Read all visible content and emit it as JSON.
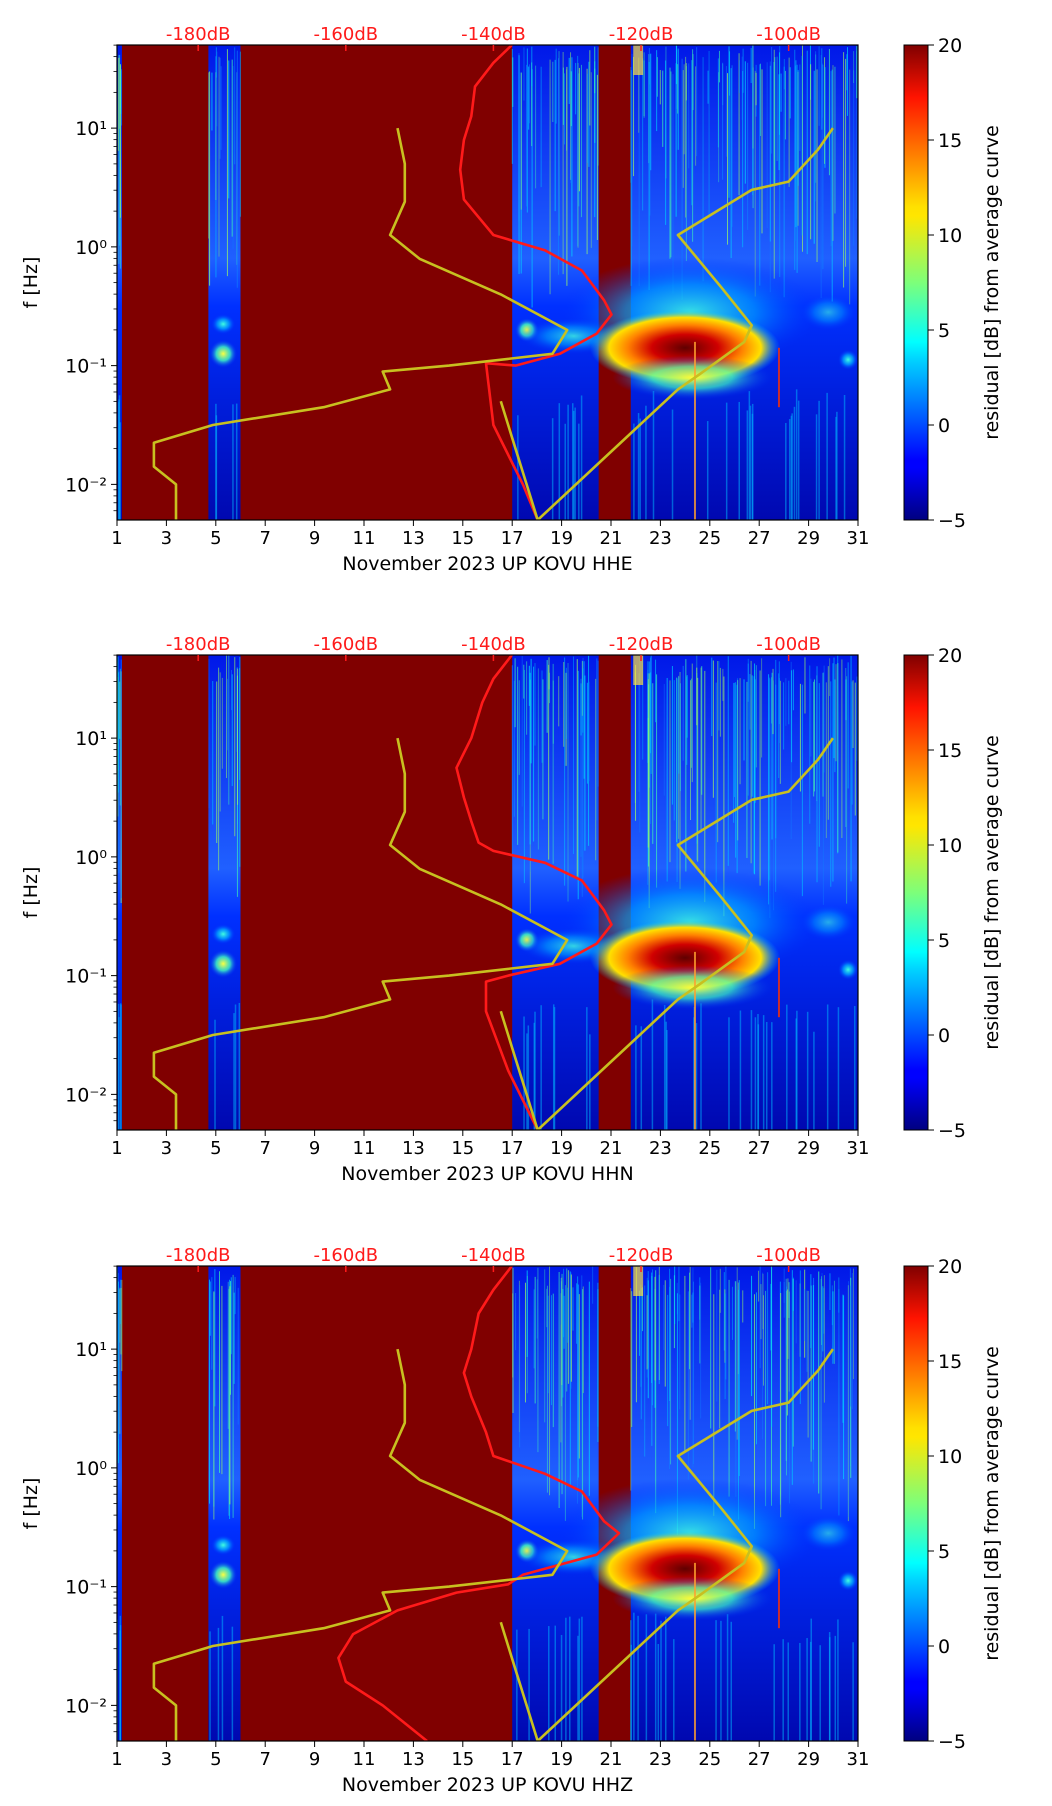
{
  "chart_data": [
    {
      "type": "heatmap",
      "title": "",
      "xlabel": "November 2023 UP KOVU  HHE",
      "ylabel": "f [Hz]",
      "x_ticks": [
        "1",
        "3",
        "5",
        "7",
        "9",
        "11",
        "13",
        "15",
        "17",
        "19",
        "21",
        "23",
        "25",
        "27",
        "29",
        "31"
      ],
      "y_ticks": [
        "10⁻²",
        "10⁻¹",
        "10⁰",
        "10¹"
      ],
      "top_ticks": [
        "-180dB",
        "-160dB",
        "-140dB",
        "-120dB",
        "-100dB"
      ],
      "colorbar": {
        "label": "residual [dB] from average curve",
        "ticks": [
          "20",
          "15",
          "10",
          "5",
          "0",
          "−5"
        ],
        "range": [
          -5,
          20
        ]
      },
      "xlim": [
        1,
        31
      ],
      "ylim_log10": [
        -2.3,
        1.7
      ],
      "series": [
        {
          "values": [
            [
              -137.5,
              1.7
            ],
            [
              -140,
              1.55
            ],
            [
              -142.5,
              1.35
            ],
            [
              -143,
              1.1
            ],
            [
              -144,
              0.9
            ],
            [
              -144.5,
              0.65
            ],
            [
              -144,
              0.4
            ],
            [
              -142,
              0.25
            ],
            [
              -140,
              0.1
            ],
            [
              -133,
              -0.03
            ],
            [
              -128,
              -0.2
            ],
            [
              -125,
              -0.45
            ],
            [
              -124,
              -0.57
            ],
            [
              -126,
              -0.73
            ],
            [
              -131,
              -0.9
            ],
            [
              -137,
              -1.0
            ],
            [
              -141,
              -0.98
            ],
            [
              -140,
              -1.5
            ],
            [
              -136,
              -2.0
            ],
            [
              -134,
              -2.3
            ]
          ]
        },
        {
          "values": [
            [
              -153,
              1.0
            ],
            [
              -152,
              0.7
            ],
            [
              -152,
              0.38
            ],
            [
              -154,
              0.1
            ],
            [
              -150,
              -0.1
            ],
            [
              -139,
              -0.4
            ],
            [
              -130,
              -0.7
            ],
            [
              -132,
              -0.9
            ],
            [
              -146,
              -1.0
            ],
            [
              -155,
              -1.05
            ],
            [
              -154,
              -1.2
            ],
            [
              -163,
              -1.35
            ],
            [
              -178,
              -1.5
            ],
            [
              -186,
              -1.65
            ],
            [
              -186,
              -1.85
            ],
            [
              -183,
              -2.0
            ],
            [
              -183,
              -2.3
            ]
          ]
        },
        {
          "values": [
            [
              -139,
              -1.3
            ],
            [
              -134,
              -2.3
            ],
            [
              -115,
              -1.2
            ],
            [
              -112,
              -1.07
            ],
            [
              -106,
              -0.8
            ],
            [
              -105,
              -0.66
            ],
            [
              -109,
              -0.35
            ],
            [
              -115,
              0.1
            ],
            [
              -105,
              0.48
            ],
            [
              -100,
              0.55
            ],
            [
              -96,
              0.82
            ],
            [
              -94,
              1.0
            ]
          ]
        }
      ],
      "colors": {
        "line_main": "#ff1a1a",
        "line_model": "#c8c020",
        "background": "#800000"
      }
    },
    {
      "type": "heatmap",
      "title": "",
      "xlabel": "November 2023 UP KOVU  HHN",
      "ylabel": "f [Hz]",
      "x_ticks": [
        "1",
        "3",
        "5",
        "7",
        "9",
        "11",
        "13",
        "15",
        "17",
        "19",
        "21",
        "23",
        "25",
        "27",
        "29",
        "31"
      ],
      "y_ticks": [
        "10⁻²",
        "10⁻¹",
        "10⁰",
        "10¹"
      ],
      "top_ticks": [
        "-180dB",
        "-160dB",
        "-140dB",
        "-120dB",
        "-100dB"
      ],
      "colorbar": {
        "label": "residual [dB] from average curve",
        "ticks": [
          "20",
          "15",
          "10",
          "5",
          "0",
          "−5"
        ],
        "range": [
          -5,
          20
        ]
      },
      "xlim": [
        1,
        31
      ],
      "ylim_log10": [
        -2.3,
        1.7
      ],
      "series": [
        {
          "values": [
            [
              -137.5,
              1.7
            ],
            [
              -140,
              1.5
            ],
            [
              -141.5,
              1.3
            ],
            [
              -143,
              1.0
            ],
            [
              -145,
              0.75
            ],
            [
              -144,
              0.5
            ],
            [
              -143,
              0.3
            ],
            [
              -142,
              0.12
            ],
            [
              -140,
              0.05
            ],
            [
              -133,
              -0.05
            ],
            [
              -128,
              -0.2
            ],
            [
              -125,
              -0.45
            ],
            [
              -124,
              -0.57
            ],
            [
              -126,
              -0.73
            ],
            [
              -131,
              -0.9
            ],
            [
              -138,
              -1.0
            ],
            [
              -141,
              -1.05
            ],
            [
              -141,
              -1.3
            ],
            [
              -138,
              -1.8
            ],
            [
              -134,
              -2.3
            ]
          ]
        },
        {
          "values": [
            [
              -153,
              1.0
            ],
            [
              -152,
              0.7
            ],
            [
              -152,
              0.38
            ],
            [
              -154,
              0.1
            ],
            [
              -150,
              -0.1
            ],
            [
              -139,
              -0.4
            ],
            [
              -130,
              -0.7
            ],
            [
              -132,
              -0.9
            ],
            [
              -146,
              -1.0
            ],
            [
              -155,
              -1.05
            ],
            [
              -154,
              -1.2
            ],
            [
              -163,
              -1.35
            ],
            [
              -178,
              -1.5
            ],
            [
              -186,
              -1.65
            ],
            [
              -186,
              -1.85
            ],
            [
              -183,
              -2.0
            ],
            [
              -183,
              -2.3
            ]
          ]
        },
        {
          "values": [
            [
              -139,
              -1.3
            ],
            [
              -134,
              -2.3
            ],
            [
              -115,
              -1.2
            ],
            [
              -112,
              -1.07
            ],
            [
              -106,
              -0.8
            ],
            [
              -105,
              -0.66
            ],
            [
              -109,
              -0.35
            ],
            [
              -115,
              0.1
            ],
            [
              -105,
              0.48
            ],
            [
              -100,
              0.55
            ],
            [
              -96,
              0.82
            ],
            [
              -94,
              1.0
            ]
          ]
        }
      ],
      "colors": {
        "line_main": "#ff1a1a",
        "line_model": "#c8c020",
        "background": "#800000"
      }
    },
    {
      "type": "heatmap",
      "title": "",
      "xlabel": "November 2023 UP KOVU  HHZ",
      "ylabel": "f [Hz]",
      "x_ticks": [
        "1",
        "3",
        "5",
        "7",
        "9",
        "11",
        "13",
        "15",
        "17",
        "19",
        "21",
        "23",
        "25",
        "27",
        "29",
        "31"
      ],
      "y_ticks": [
        "10⁻²",
        "10⁻¹",
        "10⁰",
        "10¹"
      ],
      "top_ticks": [
        "-180dB",
        "-160dB",
        "-140dB",
        "-120dB",
        "-100dB"
      ],
      "colorbar": {
        "label": "residual [dB] from average curve",
        "ticks": [
          "20",
          "15",
          "10",
          "5",
          "0",
          "−5"
        ],
        "range": [
          -5,
          20
        ]
      },
      "xlim": [
        1,
        31
      ],
      "ylim_log10": [
        -2.3,
        1.7
      ],
      "series": [
        {
          "values": [
            [
              -137.5,
              1.7
            ],
            [
              -140,
              1.5
            ],
            [
              -142,
              1.3
            ],
            [
              -143,
              1.0
            ],
            [
              -144,
              0.8
            ],
            [
              -143,
              0.6
            ],
            [
              -141,
              0.3
            ],
            [
              -140,
              0.1
            ],
            [
              -133,
              -0.05
            ],
            [
              -128,
              -0.2
            ],
            [
              -125,
              -0.45
            ],
            [
              -123,
              -0.55
            ],
            [
              -126,
              -0.73
            ],
            [
              -136,
              -0.9
            ],
            [
              -138,
              -0.98
            ],
            [
              -145,
              -1.05
            ],
            [
              -153,
              -1.2
            ],
            [
              -159,
              -1.4
            ],
            [
              -161,
              -1.6
            ],
            [
              -160,
              -1.8
            ],
            [
              -155,
              -2.0
            ],
            [
              -149,
              -2.3
            ]
          ]
        },
        {
          "values": [
            [
              -153,
              1.0
            ],
            [
              -152,
              0.7
            ],
            [
              -152,
              0.38
            ],
            [
              -154,
              0.1
            ],
            [
              -150,
              -0.1
            ],
            [
              -139,
              -0.4
            ],
            [
              -130,
              -0.7
            ],
            [
              -132,
              -0.9
            ],
            [
              -146,
              -1.0
            ],
            [
              -155,
              -1.05
            ],
            [
              -154,
              -1.2
            ],
            [
              -163,
              -1.35
            ],
            [
              -178,
              -1.5
            ],
            [
              -186,
              -1.65
            ],
            [
              -186,
              -1.85
            ],
            [
              -183,
              -2.0
            ],
            [
              -183,
              -2.3
            ]
          ]
        },
        {
          "values": [
            [
              -139,
              -1.3
            ],
            [
              -134,
              -2.3
            ],
            [
              -115,
              -1.2
            ],
            [
              -112,
              -1.07
            ],
            [
              -106,
              -0.8
            ],
            [
              -105,
              -0.66
            ],
            [
              -109,
              -0.35
            ],
            [
              -115,
              0.1
            ],
            [
              -105,
              0.48
            ],
            [
              -100,
              0.55
            ],
            [
              -96,
              0.82
            ],
            [
              -94,
              1.0
            ]
          ]
        }
      ],
      "colors": {
        "line_main": "#ff1a1a",
        "line_model": "#c8c020",
        "background": "#800000"
      }
    }
  ]
}
